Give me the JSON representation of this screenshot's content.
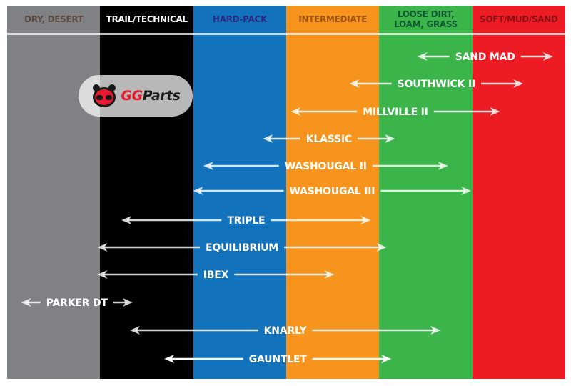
{
  "terrains": [
    {
      "label": "DRY, DESERT",
      "bg": "#808184",
      "fg": "#5b4a42"
    },
    {
      "label": "TRAIL/TECHNICAL",
      "bg": "#000000",
      "fg": "#ffffff"
    },
    {
      "label": "HARD-PACK",
      "bg": "#1272bb",
      "fg": "#2b2a86"
    },
    {
      "label": "INTERMEDIATE",
      "bg": "#f7941d",
      "fg": "#a0530c"
    },
    {
      "label": "LOOSE DIRT, LOAM, GRASS",
      "bg": "#3bb54a",
      "fg": "#0f5a30"
    },
    {
      "label": "SOFT/MUD/SAND",
      "bg": "#ed1c24",
      "fg": "#8a1014"
    }
  ],
  "tires": [
    {
      "name": "SAND MAD",
      "from": 4.41,
      "to": 5.87
    },
    {
      "name": "SOUTHWICK II",
      "from": 3.68,
      "to": 5.55
    },
    {
      "name": "MILLVILLE II",
      "from": 3.05,
      "to": 5.3
    },
    {
      "name": "KLASSIC",
      "from": 2.75,
      "to": 4.17
    },
    {
      "name": "WASHOUGAL II",
      "from": 2.11,
      "to": 4.74
    },
    {
      "name": "WASHOUGAL III",
      "from": 2.0,
      "to": 4.99
    },
    {
      "name": "TRIPLE",
      "from": 1.23,
      "to": 3.91
    },
    {
      "name": "EQUILIBRIUM",
      "from": 0.97,
      "to": 4.08
    },
    {
      "name": "IBEX",
      "from": 0.97,
      "to": 3.52
    },
    {
      "name": "PARKER DT",
      "from": 0.15,
      "to": 1.35
    },
    {
      "name": "KNARLY",
      "from": 1.32,
      "to": 4.66
    },
    {
      "name": "GAUNTLET",
      "from": 1.69,
      "to": 4.13
    }
  ],
  "watermark": {
    "brand_a": "GG",
    "brand_b": "Parts",
    "color_a": "#e8192c",
    "color_b": "#1a1a1a"
  }
}
